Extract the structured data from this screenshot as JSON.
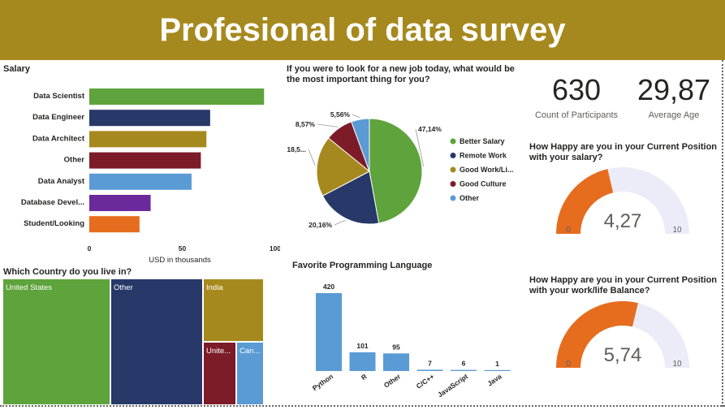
{
  "header": {
    "title": "Profesional of data survey"
  },
  "colors": {
    "header_bg": "#a6891e",
    "gauge_fill": "#e66c1e",
    "gauge_track": "#ececf8"
  },
  "kpis": {
    "participants": {
      "value": "630",
      "label": "Count of Participants"
    },
    "age": {
      "value": "29,87",
      "label": "Average Age"
    }
  },
  "chart_data": [
    {
      "id": "salary",
      "type": "bar",
      "orientation": "horizontal",
      "title": "Salary",
      "xlabel": "USD in thousands",
      "xlim": [
        0,
        100
      ],
      "ticks": [
        "0",
        "50",
        "100"
      ],
      "categories": [
        "Data Scientist",
        "Data Engineer",
        "Data Architect",
        "Other",
        "Data Analyst",
        "Database Devel...",
        "Student/Looking"
      ],
      "values": [
        94,
        65,
        63,
        60,
        55,
        33,
        27
      ],
      "colors": [
        "#5ea33b",
        "#283868",
        "#a6891e",
        "#7c1c28",
        "#5b9bd5",
        "#6b2a9c",
        "#e66c1e"
      ]
    },
    {
      "id": "job",
      "type": "pie",
      "title": "If you were to look for a new job today, what would be the most important thing for you?",
      "labels": [
        "Better Salary",
        "Remote Work",
        "Good Work/Li...",
        "Good Culture",
        "Other"
      ],
      "values": [
        47.14,
        20.16,
        18.57,
        8.57,
        5.56
      ],
      "slice_labels": [
        "47,14%",
        "20,16%",
        "18,5...",
        "8,57%",
        "5,56%"
      ],
      "colors": [
        "#5ea33b",
        "#283868",
        "#a6891e",
        "#7c1c28",
        "#5b9bd5"
      ],
      "legend_position": "right"
    },
    {
      "id": "country",
      "type": "treemap",
      "title": "Which Country do you live in?",
      "labels": [
        "United States",
        "Other",
        "India",
        "Unite...",
        "Can..."
      ],
      "colors": [
        "#5ea33b",
        "#283868",
        "#a6891e",
        "#7c1c28",
        "#5b9bd5"
      ]
    },
    {
      "id": "lang",
      "type": "bar",
      "orientation": "vertical",
      "title": "Favorite Programming Language",
      "categories": [
        "Python",
        "R",
        "Other",
        "C/C++",
        "JavaScript",
        "Java"
      ],
      "values": [
        420,
        101,
        95,
        7,
        6,
        1
      ],
      "color": "#5b9bd5"
    },
    {
      "id": "gauge_salary",
      "type": "gauge",
      "title": "How Happy are you in your Current Position with your salary?",
      "value": 4.27,
      "value_label": "4,27",
      "min": 0,
      "max": 10
    },
    {
      "id": "gauge_balance",
      "type": "gauge",
      "title": "How Happy are you in your Current Position with your work/life Balance?",
      "value": 5.74,
      "value_label": "5,74",
      "min": 0,
      "max": 10
    }
  ]
}
